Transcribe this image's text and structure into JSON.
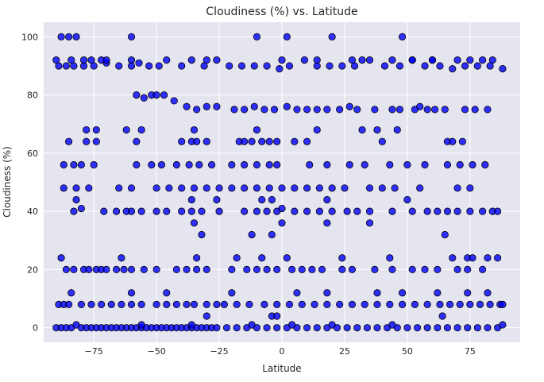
{
  "chart_data": {
    "type": "scatter",
    "title": "Cloudiness (%) vs. Latitude",
    "xlabel": "Latitude",
    "ylabel": "Cloudiness (%)",
    "xlim": [
      -95,
      95
    ],
    "ylim": [
      -5,
      105
    ],
    "x_ticks": [
      -75,
      -50,
      -25,
      0,
      25,
      50,
      75
    ],
    "x_tick_labels": [
      "−75",
      "−50",
      "−25",
      "0",
      "25",
      "50",
      "75"
    ],
    "y_ticks": [
      0,
      20,
      40,
      60,
      80,
      100
    ],
    "y_tick_labels": [
      "0",
      "20",
      "40",
      "60",
      "80",
      "100"
    ],
    "grid": true,
    "marker_color": "#0000ff",
    "marker_edge_color": "#000000",
    "background_color": "#e5e5f0",
    "series": [
      {
        "x": [
          -90,
          -88,
          -86,
          -84,
          -80,
          -78,
          -76,
          -74,
          -72,
          -70,
          -68,
          -66,
          -64,
          -62,
          -60,
          -58,
          -56,
          -54,
          -52,
          -50,
          -48,
          -46,
          -44,
          -42,
          -40,
          -38,
          -36,
          -34,
          -32,
          -30,
          -28,
          -26,
          -22,
          -18,
          -14,
          -10,
          -6,
          -2,
          2,
          6,
          10,
          14,
          18,
          22,
          26,
          30,
          34,
          38,
          42,
          46,
          50,
          54,
          58,
          62,
          66,
          70,
          74,
          78,
          82,
          86,
          -82,
          -56,
          -36,
          -12,
          4,
          20,
          44,
          88,
          -89,
          -86,
          -83,
          -79,
          -75,
          -70,
          -65,
          -60,
          -57,
          -53,
          -49,
          -46,
          -40,
          -36,
          -31,
          -26,
          -21,
          -16,
          -11,
          -6,
          -1,
          3,
          9,
          14,
          19,
          24,
          29,
          35,
          41,
          47,
          52,
          57,
          63,
          68,
          73,
          78,
          83,
          88,
          -84,
          -60,
          -30,
          0,
          32,
          60,
          -58,
          -55,
          -52,
          -50,
          -47,
          -43,
          -38,
          -34,
          -30,
          -26,
          -19,
          -15,
          -11,
          -7,
          -3,
          2,
          6,
          10,
          14,
          18,
          23,
          27,
          30,
          37,
          44,
          47,
          53,
          55,
          58,
          61,
          65,
          73,
          77,
          82,
          -83,
          -80,
          -71,
          -66,
          -62,
          -60,
          -56,
          -50,
          -46,
          -40,
          -36,
          -32,
          -25,
          -15,
          -10,
          -6,
          -2,
          0,
          5,
          10,
          15,
          20,
          26,
          30,
          35,
          44,
          52,
          58,
          62,
          66,
          70,
          75,
          80,
          84,
          86,
          -89,
          -87,
          -85,
          -80,
          -76,
          -72,
          -68,
          -64,
          -60,
          -56,
          -50,
          -46,
          -42,
          -38,
          -35,
          -30,
          -26,
          -23,
          -18,
          -13,
          -7,
          -2,
          3,
          8,
          13,
          18,
          23,
          28,
          33,
          38,
          43,
          48,
          53,
          58,
          63,
          67,
          71,
          75,
          79,
          83,
          87,
          88,
          -87,
          -82,
          -77,
          -65,
          -60,
          -50,
          -45,
          -40,
          -35,
          -30,
          -25,
          -20,
          -15,
          -10,
          -5,
          0,
          5,
          10,
          15,
          20,
          25,
          35,
          40,
          45,
          55,
          70,
          75,
          -87,
          -83,
          -80,
          -75,
          -58,
          -52,
          -48,
          -42,
          -37,
          -33,
          -28,
          -20,
          -15,
          -10,
          -5,
          -2,
          11,
          18,
          27,
          33,
          43,
          50,
          57,
          66,
          71,
          76,
          81,
          -85,
          -78,
          -74,
          -58,
          -40,
          -36,
          -34,
          -30,
          -17,
          -15,
          -12,
          -8,
          -5,
          -2,
          5,
          10,
          40,
          66,
          68,
          72,
          -78,
          -74,
          -62,
          -56,
          -35,
          -10,
          14,
          32,
          38,
          46,
          -86,
          -83,
          -79,
          -77,
          -74,
          -72,
          -70,
          -66,
          -63,
          -60,
          -55,
          -50,
          -42,
          -38,
          -34,
          -30,
          -20,
          -14,
          -10,
          -6,
          -2,
          4,
          8,
          12,
          16,
          24,
          28,
          37,
          44,
          52,
          57,
          62,
          70,
          74,
          80,
          -90,
          -88,
          -85,
          -82,
          -79,
          -76,
          -72,
          -70,
          -60,
          -10,
          2,
          14,
          20,
          28,
          44,
          48,
          52,
          60,
          70,
          75,
          80,
          84,
          -88,
          -64,
          -34,
          -18,
          -8,
          2,
          24,
          43,
          68,
          74,
          76,
          82,
          86,
          -32,
          -35,
          -12,
          -4,
          0,
          18,
          35,
          65,
          -84,
          -60,
          -46,
          -20,
          6,
          18,
          38,
          48,
          62,
          74,
          82,
          -82,
          -36,
          -26,
          -8,
          -4,
          18,
          50,
          -30,
          -4,
          -2,
          64
        ],
        "y": [
          0,
          0,
          0,
          0,
          0,
          0,
          0,
          0,
          0,
          0,
          0,
          0,
          0,
          0,
          0,
          0,
          0,
          0,
          0,
          0,
          0,
          0,
          0,
          0,
          0,
          0,
          0,
          0,
          0,
          0,
          0,
          0,
          0,
          0,
          0,
          0,
          0,
          0,
          0,
          0,
          0,
          0,
          0,
          0,
          0,
          0,
          0,
          0,
          0,
          0,
          0,
          0,
          0,
          0,
          0,
          0,
          0,
          0,
          0,
          0,
          1,
          1,
          1,
          1,
          1,
          1,
          1,
          1,
          90,
          90,
          90,
          90,
          90,
          91,
          90,
          90,
          91,
          90,
          90,
          92,
          90,
          92,
          90,
          92,
          90,
          90,
          90,
          90,
          89,
          90,
          92,
          90,
          90,
          90,
          90,
          92,
          90,
          90,
          92,
          90,
          90,
          89,
          90,
          90,
          90,
          89,
          92,
          92,
          92,
          92,
          92,
          92,
          80,
          79,
          80,
          80,
          80,
          78,
          76,
          75,
          76,
          76,
          75,
          75,
          76,
          75,
          75,
          76,
          75,
          75,
          75,
          75,
          75,
          76,
          75,
          75,
          75,
          75,
          75,
          76,
          75,
          75,
          75,
          75,
          75,
          75,
          40,
          41,
          40,
          40,
          40,
          40,
          40,
          40,
          40,
          40,
          40,
          40,
          40,
          40,
          40,
          40,
          40,
          41,
          40,
          40,
          40,
          40,
          40,
          40,
          40,
          40,
          40,
          40,
          40,
          40,
          40,
          40,
          40,
          40,
          40,
          8,
          8,
          8,
          8,
          8,
          8,
          8,
          8,
          8,
          8,
          8,
          8,
          8,
          8,
          8,
          8,
          8,
          8,
          8,
          8,
          8,
          8,
          8,
          8,
          8,
          8,
          8,
          8,
          8,
          8,
          8,
          8,
          8,
          8,
          8,
          8,
          8,
          8,
          8,
          8,
          8,
          8,
          48,
          48,
          48,
          48,
          48,
          48,
          48,
          48,
          48,
          48,
          48,
          48,
          48,
          48,
          48,
          48,
          48,
          48,
          48,
          48,
          48,
          48,
          48,
          48,
          48,
          48,
          48,
          56,
          56,
          56,
          56,
          56,
          56,
          56,
          56,
          56,
          56,
          56,
          56,
          56,
          56,
          56,
          56,
          56,
          56,
          56,
          56,
          56,
          56,
          56,
          56,
          56,
          56,
          56,
          64,
          64,
          64,
          64,
          64,
          64,
          64,
          64,
          64,
          64,
          64,
          64,
          64,
          64,
          64,
          64,
          64,
          64,
          64,
          64,
          68,
          68,
          68,
          68,
          68,
          68,
          68,
          68,
          68,
          68,
          20,
          20,
          20,
          20,
          20,
          20,
          20,
          20,
          20,
          20,
          20,
          20,
          20,
          20,
          20,
          20,
          20,
          20,
          20,
          20,
          20,
          20,
          20,
          20,
          20,
          20,
          20,
          20,
          20,
          20,
          20,
          20,
          20,
          20,
          20,
          92,
          100,
          100,
          100,
          92,
          92,
          92,
          92,
          100,
          100,
          100,
          92,
          100,
          92,
          92,
          100,
          92,
          92,
          92,
          92,
          92,
          92,
          24,
          24,
          24,
          24,
          24,
          24,
          24,
          24,
          24,
          24,
          24,
          24,
          24,
          32,
          36,
          32,
          32,
          36,
          36,
          36,
          32,
          12,
          12,
          12,
          12,
          12,
          12,
          12,
          12,
          12,
          12,
          12,
          44,
          44,
          44,
          44,
          44,
          44,
          44,
          4,
          4,
          4,
          4
        ]
      }
    ]
  }
}
